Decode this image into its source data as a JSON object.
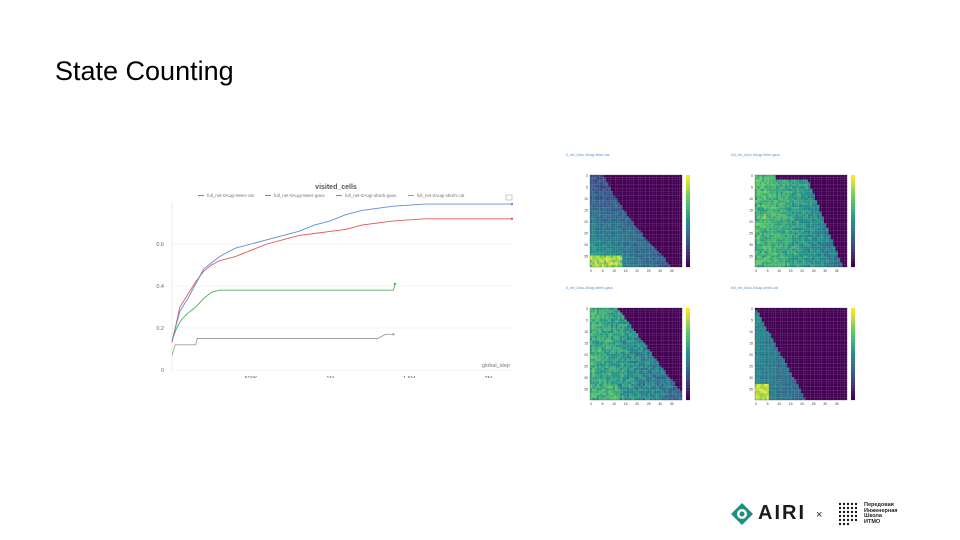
{
  "slide": {
    "title": "State Counting"
  },
  "chart_data": [
    {
      "type": "line",
      "title": "visited_cells",
      "xlabel": "global_step",
      "ylabel": "",
      "xlim": [
        0,
        2150000
      ],
      "ylim": [
        0,
        0.8
      ],
      "x_ticks": [
        {
          "value": 500000,
          "label": "500K"
        },
        {
          "value": 1000000,
          "label": "1M"
        },
        {
          "value": 1500000,
          "label": "1.5M"
        },
        {
          "value": 2000000,
          "label": "2M"
        }
      ],
      "y_ticks": [
        {
          "value": 0,
          "label": "0"
        },
        {
          "value": 0.2,
          "label": "0.2"
        },
        {
          "value": 0.4,
          "label": "0.4"
        },
        {
          "value": 0.6,
          "label": "0.6"
        }
      ],
      "grid": true,
      "legend": "top",
      "series": [
        {
          "name": "full_net-0Augi-9eter-cat",
          "color": "#4caf50",
          "x": [
            0,
            30000,
            60000,
            100000,
            150000,
            200000,
            250000,
            300000,
            500000,
            1000000,
            1400000,
            1410000
          ],
          "y": [
            0.14,
            0.2,
            0.24,
            0.27,
            0.3,
            0.34,
            0.37,
            0.38,
            0.38,
            0.38,
            0.38,
            0.41
          ]
        },
        {
          "name": "full_net-0Augi-9eter-gaus",
          "color": "#e45756",
          "x": [
            0,
            50000,
            100000,
            150000,
            200000,
            250000,
            300000,
            400000,
            500000,
            600000,
            700000,
            800000,
            900000,
            1000000,
            1100000,
            1200000,
            1300000,
            1400000,
            1600000,
            1800000,
            2150000
          ],
          "y": [
            0.13,
            0.3,
            0.36,
            0.42,
            0.47,
            0.5,
            0.52,
            0.54,
            0.57,
            0.6,
            0.62,
            0.64,
            0.65,
            0.66,
            0.67,
            0.69,
            0.7,
            0.71,
            0.72,
            0.72,
            0.72
          ]
        },
        {
          "name": "full_net-0Augi-sbreh-gaus",
          "color": "#5b8fd6",
          "x": [
            0,
            50000,
            100000,
            150000,
            200000,
            250000,
            300000,
            400000,
            500000,
            600000,
            700000,
            800000,
            900000,
            1000000,
            1100000,
            1200000,
            1300000,
            1400000,
            1600000,
            1800000,
            2150000
          ],
          "y": [
            0.14,
            0.28,
            0.34,
            0.41,
            0.48,
            0.51,
            0.54,
            0.58,
            0.6,
            0.62,
            0.64,
            0.66,
            0.69,
            0.71,
            0.74,
            0.76,
            0.77,
            0.78,
            0.79,
            0.79,
            0.79
          ]
        },
        {
          "name": "full_net-0Augi-sbreh-cat",
          "color": "#9e9e9e",
          "x": [
            0,
            20000,
            60000,
            150000,
            160000,
            500000,
            1000000,
            1300000,
            1350000,
            1400000
          ],
          "y": [
            0.07,
            0.12,
            0.12,
            0.12,
            0.15,
            0.15,
            0.15,
            0.15,
            0.17,
            0.17
          ]
        }
      ]
    },
    {
      "type": "heatmap",
      "title": "fl_net_0Acc-9Augi-9eter-cat",
      "x_ticks": [
        "0",
        "5",
        "10",
        "15",
        "20",
        "25",
        "30",
        "35"
      ],
      "y_ticks": [
        "0",
        "5",
        "10",
        "15",
        "20",
        "25",
        "30",
        "35"
      ],
      "colorbar_ticks": [
        "3",
        "2",
        "1",
        "0",
        "-1",
        "-2",
        "-3",
        "-4",
        "-5"
      ],
      "colormap": "viridis",
      "pattern": "sparse-bottom-left"
    },
    {
      "type": "heatmap",
      "title": "full_net_0Acc-9Augi-9eter-gaus",
      "x_ticks": [
        "0",
        "5",
        "10",
        "15",
        "20",
        "25",
        "30",
        "35"
      ],
      "y_ticks": [
        "0",
        "5",
        "10",
        "15",
        "20",
        "25",
        "30",
        "35"
      ],
      "colorbar_ticks": [
        "3",
        "2",
        "1",
        "0",
        "-1",
        "-2",
        "-3",
        "-4",
        "-5"
      ],
      "colormap": "viridis",
      "pattern": "wide-upper-left"
    },
    {
      "type": "heatmap",
      "title": "fl_net_0Acc-9Augi-sbreh-gaus",
      "x_ticks": [
        "0",
        "5",
        "10",
        "15",
        "20",
        "25",
        "30",
        "35"
      ],
      "y_ticks": [
        "0",
        "5",
        "10",
        "15",
        "20",
        "25",
        "30",
        "35"
      ],
      "colorbar_ticks": [
        "3",
        "2",
        "1",
        "0",
        "-1",
        "-2",
        "-3",
        "-4",
        "-5"
      ],
      "colormap": "viridis",
      "pattern": "wide-lower-left"
    },
    {
      "type": "heatmap",
      "title": "full_net_0Acc-9Augi-sbreh-cat",
      "x_ticks": [
        "0",
        "5",
        "10",
        "15",
        "20",
        "25",
        "30",
        "35"
      ],
      "y_ticks": [
        "0",
        "5",
        "10",
        "15",
        "20",
        "25",
        "30",
        "35"
      ],
      "colorbar_ticks": [
        "3",
        "2",
        "1",
        "0",
        "-1",
        "-2",
        "-3",
        "-4",
        "-5"
      ],
      "colormap": "viridis",
      "pattern": "small-lower-left"
    }
  ],
  "footer": {
    "brand": "AIRI",
    "separator": "×",
    "partner_lines": [
      "Передовая",
      "Инженерная",
      "Школа",
      "ИТМО"
    ]
  }
}
